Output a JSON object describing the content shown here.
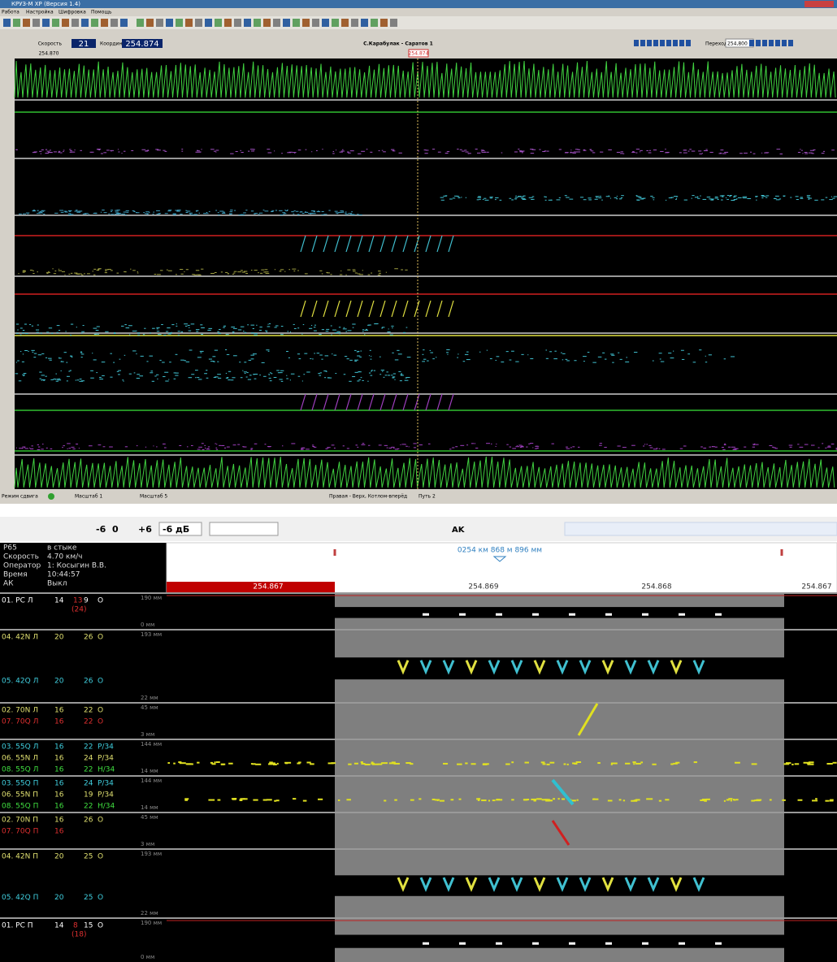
{
  "window": {
    "title": "КРУЗ-М XP (Версия 1.4)",
    "menu": [
      "Работа",
      "Настройка",
      "Шифровка",
      "Помощь"
    ],
    "speed_label": "Скорость",
    "speed": "21",
    "coord_label": "Координата",
    "coord": "254.874",
    "route": "С.Карабулак - Саратов 1",
    "goto_label": "Переход",
    "goto_value": "254,800",
    "ruler_left": "254.870",
    "ruler_cursor": "254.874",
    "status": [
      "Режим сдвига",
      "Масштаб 1",
      "Масштаб 5",
      "Правая - Верх, Котлом-вперёд",
      "Путь 2"
    ]
  },
  "panel": {
    "toolbar": [
      "-6",
      "0",
      "+6",
      "-6 дБ",
      "AK"
    ],
    "info": [
      [
        "Р65",
        "в стыке"
      ],
      [
        "Скорость",
        "4.70 км/ч"
      ],
      [
        "Оператор",
        "1: Косыгин В.В."
      ],
      [
        "Время",
        "10:44:57"
      ],
      [
        "АК",
        "Выкл"
      ]
    ],
    "position": "0254 км 868 м 896 мм",
    "ruler": [
      "254.867",
      "254.869",
      "254.868",
      "254.867"
    ],
    "groups": [
      {
        "mm_top": "190 мм",
        "mm_bottom": "0 мм",
        "channels": [
          {
            "name": "01. РС Л",
            "gain": "14",
            "a": "13",
            "b": "9",
            "mode": "О",
            "note": "(24)",
            "color": "#ffffff"
          }
        ]
      },
      {
        "mm_top": "193 мм",
        "mm_bottom": "22 мм",
        "channels": [
          {
            "name": "04. 42N Л",
            "gain": "20",
            "b": "26",
            "mode": "О",
            "color": "#e0e070"
          },
          {
            "name": "05. 42Q Л",
            "gain": "20",
            "b": "26",
            "mode": "О",
            "color": "#40d0e0"
          }
        ]
      },
      {
        "mm_top": "45 мм",
        "mm_bottom": "3 мм",
        "channels": [
          {
            "name": "02. 70N Л",
            "gain": "16",
            "b": "22",
            "mode": "О",
            "color": "#e0e070"
          },
          {
            "name": "07. 70Q Л",
            "gain": "16",
            "b": "22",
            "mode": "О",
            "color": "#e03030"
          }
        ]
      },
      {
        "mm_top": "144 мм",
        "mm_bottom": "14 мм",
        "channels": [
          {
            "name": "03. 55Q Л",
            "gain": "16",
            "b": "22",
            "mode": "Р/34",
            "color": "#40d0e0"
          },
          {
            "name": "06. 55N Л",
            "gain": "16",
            "b": "24",
            "mode": "Р/34",
            "color": "#e0e070"
          },
          {
            "name": "08. 55Q Л",
            "gain": "16",
            "b": "22",
            "mode": "Н/34",
            "color": "#40e040"
          }
        ]
      },
      {
        "mm_top": "144 мм",
        "mm_bottom": "14 мм",
        "channels": [
          {
            "name": "03. 55Q П",
            "gain": "16",
            "b": "24",
            "mode": "Р/34",
            "color": "#40d0e0"
          },
          {
            "name": "06. 55N П",
            "gain": "16",
            "b": "19",
            "mode": "Р/34",
            "color": "#e0e070"
          },
          {
            "name": "08. 55Q П",
            "gain": "16",
            "b": "22",
            "mode": "Н/34",
            "color": "#40e040"
          }
        ]
      },
      {
        "mm_top": "45 мм",
        "mm_bottom": "3 мм",
        "channels": [
          {
            "name": "02. 70N П",
            "gain": "16",
            "b": "26",
            "mode": "О",
            "color": "#e0e070"
          },
          {
            "name": "07. 70Q П",
            "gain": "16",
            "color": "#e03030"
          }
        ]
      },
      {
        "mm_top": "193 мм",
        "mm_bottom": "22 мм",
        "channels": [
          {
            "name": "04. 42N П",
            "gain": "20",
            "b": "25",
            "mode": "О",
            "color": "#e0e070"
          },
          {
            "name": "05. 42Q П",
            "gain": "20",
            "b": "25",
            "mode": "О",
            "color": "#40d0e0"
          }
        ]
      },
      {
        "mm_top": "190 мм",
        "mm_bottom": "0 мм",
        "channels": [
          {
            "name": "01. РС П",
            "gain": "14",
            "a": "8",
            "b": "15",
            "mode": "О",
            "note": "(18)",
            "color": "#ffffff"
          }
        ]
      }
    ]
  }
}
